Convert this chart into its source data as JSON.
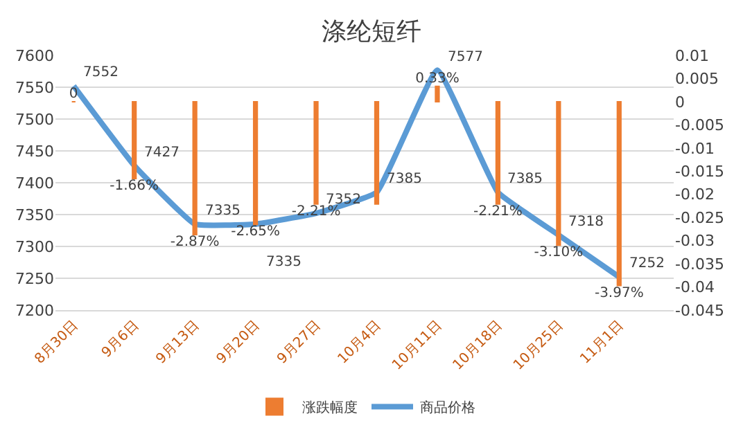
{
  "chart_data": {
    "type": "line",
    "title": "涤纶短纤",
    "categories": [
      "8月30日",
      "9月6日",
      "9月13日",
      "9月20日",
      "9月27日",
      "10月4日",
      "10月11日",
      "10月18日",
      "10月25日",
      "11月1日"
    ],
    "series": [
      {
        "name": "涨跌幅度",
        "type": "bar",
        "axis": "y2",
        "color": "#ed7d31",
        "values": [
          0,
          -0.0166,
          -0.0287,
          -0.0265,
          -0.0221,
          -0.0221,
          0.0033,
          -0.0221,
          -0.031,
          -0.0397
        ],
        "value_labels": [
          "0",
          "-1.66%",
          "-2.87%",
          "-2.65%",
          "-2.21%",
          null,
          "0.33%",
          "-2.21%",
          "-3.10%",
          "-3.97%"
        ]
      },
      {
        "name": "商品价格",
        "color": "#5b9bd5",
        "values": [
          7552,
          7427,
          7335,
          7335,
          7352,
          7385,
          7577,
          7385,
          7318,
          7252
        ],
        "value_labels": [
          "7552",
          "7427",
          "7335",
          "7335",
          "7352",
          "7385",
          "7577",
          "7385",
          "7318",
          "7252"
        ]
      }
    ],
    "ylim": [
      7200,
      7600
    ],
    "yticks": [
      7200,
      7250,
      7300,
      7350,
      7400,
      7450,
      7500,
      7550,
      7600
    ],
    "y2lim": [
      -0.045,
      0.01
    ],
    "y2ticks": [
      -0.045,
      -0.04,
      -0.035,
      -0.03,
      -0.025,
      -0.02,
      -0.015,
      -0.01,
      -0.005,
      0,
      0.005,
      0.01
    ],
    "grid": "y",
    "legend": "bottom",
    "marker": "none",
    "line_style": "solid"
  }
}
